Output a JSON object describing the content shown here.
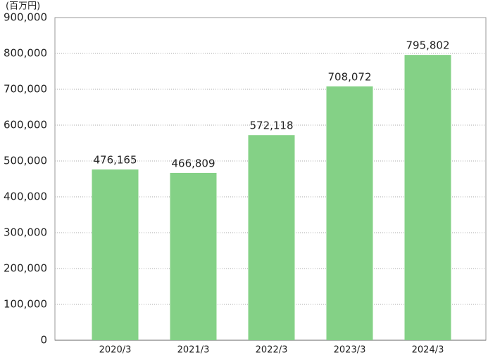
{
  "chart_data": {
    "type": "bar",
    "unit_label": "(百万円)",
    "categories": [
      "2020/3",
      "2021/3",
      "2022/3",
      "2023/3",
      "2024/3"
    ],
    "values": [
      476165,
      466809,
      572118,
      708072,
      795802
    ],
    "value_labels": [
      "476,165",
      "466,809",
      "572,118",
      "708,072",
      "795,802"
    ],
    "color": "#84d186",
    "ylim": [
      0,
      900000
    ],
    "yticks": [
      0,
      {
        "value": 100000,
        "label": "100,000"
      },
      {
        "value": 200000,
        "label": "200,000"
      },
      {
        "value": 300000,
        "label": "300,000"
      },
      {
        "value": 400000,
        "label": "400,000"
      },
      {
        "value": 500000,
        "label": "500,000"
      },
      {
        "value": 600000,
        "label": "600,000"
      },
      {
        "value": 700000,
        "label": "700,000"
      },
      {
        "value": 800000,
        "label": "800,000"
      },
      {
        "value": 900000,
        "label": "900,000"
      }
    ],
    "grid": true
  }
}
